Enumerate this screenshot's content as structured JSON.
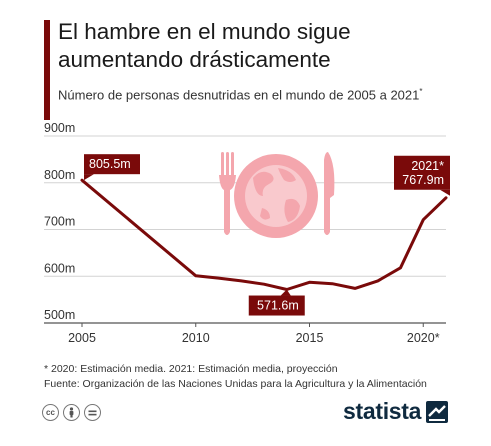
{
  "header": {
    "title": "El hambre en el mundo sigue\naumentando drásticamente",
    "subtitle": "Número de personas desnutridas en el mundo de 2005 a 2021",
    "subtitle_mark": "*"
  },
  "chart_data": {
    "type": "line",
    "x": [
      2005,
      2010,
      2011,
      2012,
      2013,
      2014,
      2015,
      2016,
      2017,
      2018,
      2019,
      2020,
      2021
    ],
    "series": [
      {
        "values": [
          805.5,
          601,
          596,
          590,
          583,
          571.6,
          587,
          584,
          574,
          590,
          618,
          721,
          767.9
        ],
        "color": "#7a0a0a"
      }
    ],
    "ylim": [
      500,
      900
    ],
    "xlim": [
      2005,
      2021
    ],
    "y_ticks": [
      "500m",
      "600m",
      "700m",
      "800m",
      "900m"
    ],
    "x_ticks": [
      "2005",
      "2010",
      "2015",
      "2020*"
    ],
    "grid": true,
    "annotations": [
      {
        "text": "805.5m",
        "year": 2005,
        "value": 805.5
      },
      {
        "text": "571.6m",
        "year": 2014,
        "value": 571.6
      },
      {
        "text": "2021*\n767.9m",
        "year": 2021,
        "value": 767.9
      }
    ]
  },
  "footer": {
    "note": "* 2020: Estimación media. 2021: Estimación media, proyección",
    "source": "Fuente: Organización de las Naciones Unidas para la Agricultura y la Alimentación"
  },
  "license_icons": [
    "cc-icon",
    "person-icon",
    "equals-icon"
  ],
  "brand": {
    "name": "statista"
  },
  "colors": {
    "accent": "#7a0a0a",
    "line": "#7a0a0a",
    "illustration": "#f4a6ad",
    "illustration_light": "#f9c9cd"
  }
}
